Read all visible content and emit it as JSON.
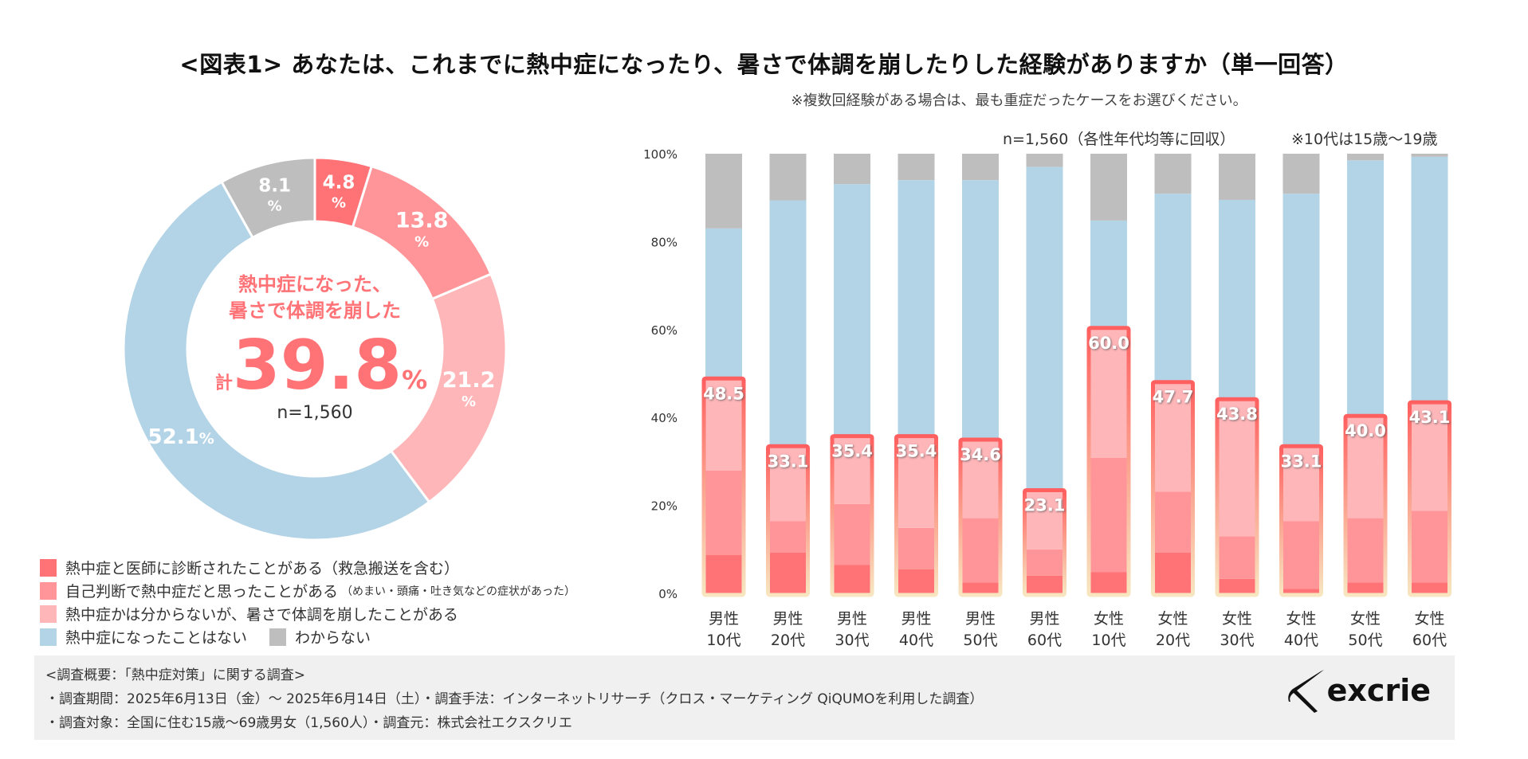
{
  "title": "<図表1> あなたは、これまでに熱中症になったり、暑さで体調を崩したりした経験がありますか（単一回答）",
  "subtitle": "※複数回経験がある場合は、最も重症だったケースをお選びください。",
  "colors": {
    "diagnosed": "#FF7377",
    "self_judged": "#FF9598",
    "unsure_unwell": "#FFB6B9",
    "never": "#B3D4E6",
    "dont_know": "#BEBEBE",
    "highlight_border_top": "#FF5F5F",
    "highlight_border_bottom": "#F7E6C0"
  },
  "donut": {
    "center_line1": "熱中症になった、",
    "center_line2": "暑さで体調を崩した",
    "total_prefix": "計",
    "total_value": "39.8",
    "total_suffix": "%",
    "n_label": "n=1,560"
  },
  "legend": {
    "items": [
      {
        "key": "diagnosed",
        "label": "熱中症と医師に診断されたことがある（救急搬送を含む）",
        "note": ""
      },
      {
        "key": "self_judged",
        "label": "自己判断で熱中症だと思ったことがある",
        "note": "（めまい・頭痛・吐き気などの症状があった）"
      },
      {
        "key": "unsure_unwell",
        "label": "熱中症かは分からないが、暑さで体調を崩したことがある",
        "note": ""
      },
      {
        "key": "never",
        "label": "熱中症になったことはない",
        "note": ""
      },
      {
        "key": "dont_know",
        "label": "わからない",
        "note": ""
      }
    ]
  },
  "bar_header": {
    "n_note": "n=1,560（各性年代均等に回収）",
    "age_note": "※10代は15歳～19歳"
  },
  "chart_data": [
    {
      "type": "pie",
      "variant": "donut",
      "title": "全体",
      "n": 1560,
      "slices": [
        {
          "key": "diagnosed",
          "label": "熱中症と医師に診断されたことがある（救急搬送を含む）",
          "value": 4.8,
          "display": "4.8",
          "unit": "%"
        },
        {
          "key": "self_judged",
          "label": "自己判断で熱中症だと思ったことがある",
          "value": 13.8,
          "display": "13.8",
          "unit": "%"
        },
        {
          "key": "unsure_unwell",
          "label": "熱中症かは分からないが、暑さで体調を崩したことがある",
          "value": 21.2,
          "display": "21.2",
          "unit": "%"
        },
        {
          "key": "never",
          "label": "熱中症になったことはない",
          "value": 52.1,
          "display": "52.1",
          "unit": "%"
        },
        {
          "key": "dont_know",
          "label": "わからない",
          "value": 8.1,
          "display": "8.1",
          "unit": "%"
        }
      ],
      "total_experienced": 39.8
    },
    {
      "type": "bar",
      "stacked": true,
      "percent": true,
      "title": "性年代別",
      "ylim": [
        0,
        100
      ],
      "yticks": [
        "0%",
        "20%",
        "40%",
        "60%",
        "80%",
        "100%"
      ],
      "categories": [
        [
          "男性",
          "10代"
        ],
        [
          "男性",
          "20代"
        ],
        [
          "男性",
          "30代"
        ],
        [
          "男性",
          "40代"
        ],
        [
          "男性",
          "50代"
        ],
        [
          "男性",
          "60代"
        ],
        [
          "女性",
          "10代"
        ],
        [
          "女性",
          "20代"
        ],
        [
          "女性",
          "30代"
        ],
        [
          "女性",
          "40代"
        ],
        [
          "女性",
          "50代"
        ],
        [
          "女性",
          "60代"
        ]
      ],
      "series": [
        {
          "key": "diagnosed",
          "name": "熱中症と医師に診断されたことがある",
          "values": [
            8.7,
            9.3,
            6.5,
            5.5,
            2.5,
            4.0,
            4.8,
            9.3,
            3.3,
            1.0,
            2.5,
            2.5
          ]
        },
        {
          "key": "self_judged",
          "name": "自己判断で熱中症だと思ったことがある",
          "values": [
            19.2,
            7.1,
            13.8,
            9.4,
            14.6,
            6.0,
            26.0,
            13.8,
            9.7,
            15.4,
            14.6,
            16.3
          ]
        },
        {
          "key": "unsure_unwell",
          "name": "熱中症かは分からないが、暑さで体調を崩したことがある",
          "values": [
            20.6,
            16.7,
            15.1,
            20.5,
            17.5,
            13.1,
            29.2,
            24.6,
            30.8,
            16.7,
            22.9,
            24.3
          ]
        },
        {
          "key": "never",
          "name": "熱中症になったことはない",
          "values": [
            34.5,
            56.3,
            57.7,
            58.6,
            59.4,
            73.9,
            24.8,
            43.2,
            45.7,
            57.8,
            58.5,
            56.2
          ]
        },
        {
          "key": "dont_know",
          "name": "わからない",
          "values": [
            17.0,
            10.6,
            6.9,
            6.0,
            6.0,
            3.0,
            15.2,
            9.1,
            10.5,
            9.1,
            1.5,
            0.7
          ]
        }
      ],
      "totals_label": [
        "48.5",
        "33.1",
        "35.4",
        "35.4",
        "34.6",
        "23.1",
        "60.0",
        "47.7",
        "43.8",
        "33.1",
        "40.0",
        "43.1"
      ],
      "totals": [
        48.5,
        33.1,
        35.4,
        35.4,
        34.6,
        23.1,
        60.0,
        47.7,
        43.8,
        33.1,
        40.0,
        43.1
      ],
      "legend": "bottom-left"
    }
  ],
  "footer": {
    "line1": "<調査概要：「熱中症対策」に関する調査>",
    "line2": "・調査期間：2025年6月13日（金）～ 2025年6月14日（土）・調査手法：インターネットリサーチ（クロス・マーケティング QiQUMOを利用した調査）",
    "line3": "・調査対象：全国に住む15歳～69歳男女（1,560人）・調査元：株式会社エクスクリエ",
    "logo_text": "excrie"
  }
}
